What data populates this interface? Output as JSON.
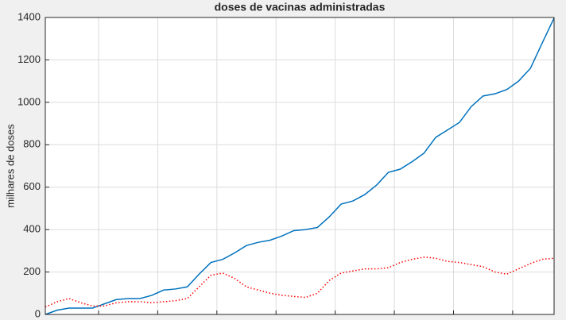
{
  "chart_data": {
    "type": "line",
    "title": "doses de vacinas administradas",
    "y_label": "milhares de doses",
    "x": [
      0,
      2,
      4,
      6,
      8,
      10,
      12,
      14,
      16,
      18,
      20,
      22,
      24,
      26,
      28,
      30,
      32,
      34,
      36,
      38,
      40,
      42,
      44,
      46,
      48,
      50,
      52,
      54,
      56,
      58,
      60,
      62,
      64,
      66,
      68,
      70,
      72,
      74,
      76,
      78,
      80,
      82,
      84,
      86
    ],
    "series": [
      {
        "color": "#0072bd",
        "style": "solid",
        "values": [
          0,
          20,
          30,
          30,
          30,
          50,
          70,
          75,
          75,
          90,
          115,
          120,
          130,
          190,
          245,
          260,
          290,
          325,
          340,
          350,
          370,
          395,
          400,
          410,
          460,
          520,
          535,
          565,
          610,
          670,
          685,
          720,
          760,
          835,
          870,
          905,
          980,
          1030,
          1040,
          1060,
          1100,
          1160,
          1280,
          1397
        ]
      },
      {
        "color": "#ff0000",
        "style": "dotted",
        "values": [
          35,
          60,
          75,
          55,
          40,
          40,
          55,
          60,
          60,
          55,
          60,
          65,
          75,
          130,
          185,
          195,
          170,
          130,
          115,
          100,
          90,
          85,
          80,
          100,
          160,
          195,
          205,
          215,
          215,
          220,
          245,
          260,
          270,
          265,
          250,
          245,
          235,
          225,
          200,
          190,
          215,
          240,
          260,
          265
        ]
      }
    ],
    "xlim": [
      0,
      86
    ],
    "xticks": [
      9,
      19,
      29,
      39,
      49,
      59,
      69,
      79
    ],
    "ylim": [
      0,
      1400
    ],
    "yticks": [
      0,
      200,
      400,
      600,
      800,
      1000,
      1200,
      1400
    ],
    "grid": true
  }
}
